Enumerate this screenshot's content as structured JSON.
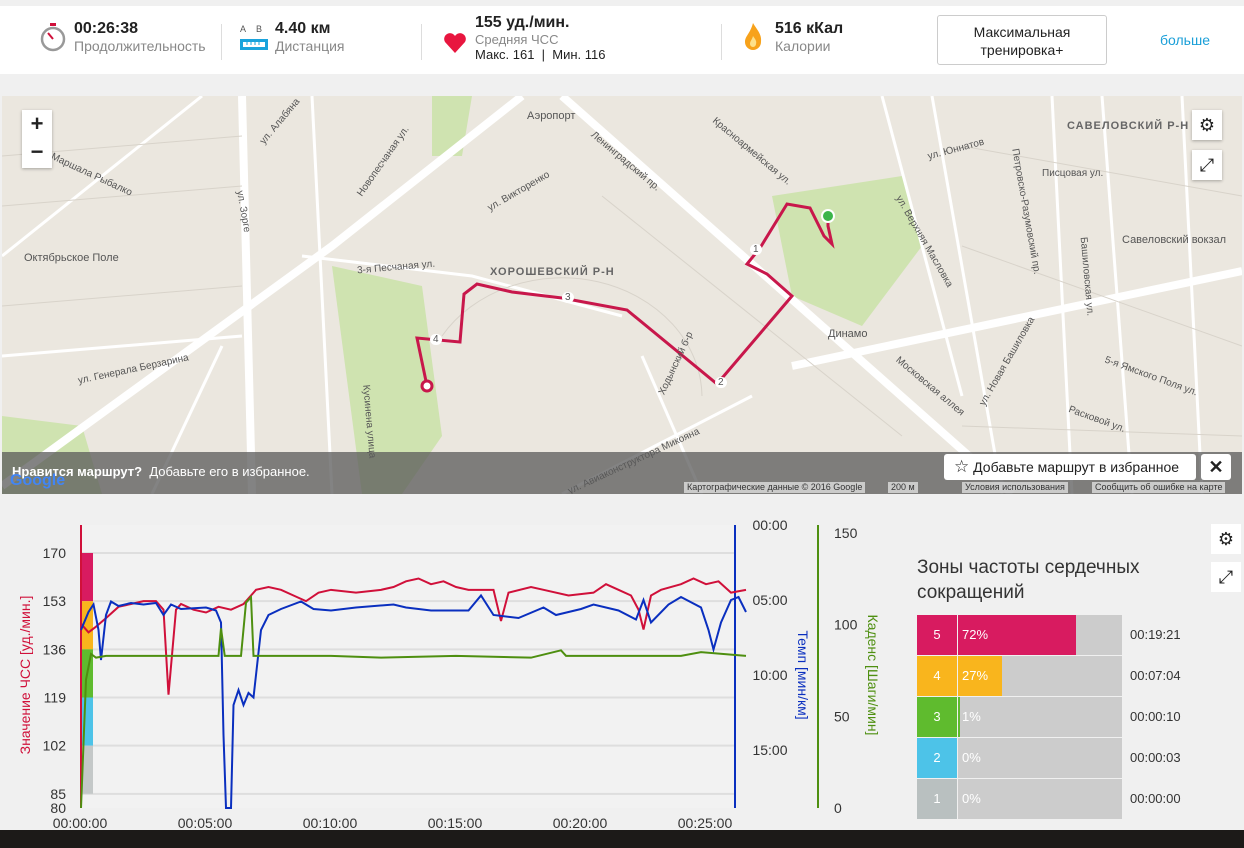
{
  "summary": {
    "duration": {
      "value": "00:26:38",
      "label": "Продолжительность",
      "icon": "stopwatch-icon"
    },
    "distance": {
      "value": "4.40 км",
      "label": "Дистанция",
      "a": "A",
      "b": "B",
      "icon": "ruler-icon"
    },
    "heart_rate": {
      "value": "155 уд./мин.",
      "label": "Средняя ЧСС",
      "minmax": "Макс. 161  |  Мин. 116",
      "icon": "heart-icon"
    },
    "calories": {
      "value": "516 кКал",
      "label": "Калории",
      "icon": "flame-icon"
    },
    "workout_button": "Максимальная тренировка+",
    "more_link": "больше"
  },
  "map": {
    "labels": [
      "Аэропорт",
      "Октябрьское Поле",
      "Динамо",
      "Савеловский вокзал",
      "ул. Зорге",
      "Ленинградский пр.",
      "3-я Песчаная ул.",
      "ул. Генерала Берзарина",
      "Московская аллея",
      "ул. Новая Башиловка",
      "ул. Авиаконструктора Микояна",
      "Ходынский б-р",
      "Кусинена улица",
      "Петровско-Разумовский пр.",
      "Башиловская ул.",
      "Писцовая ул.",
      "ул. Юннатов",
      "Красноармейская ул.",
      "ул. Викторенко",
      "ул. Маршала Рыбалко",
      "ул. Алабяна",
      "Новопесчаная ул.",
      "ул. Верхняя Масловка",
      "Расковой ул.",
      "5-я Ямского Поля ул."
    ],
    "districts": [
      "ХОРОШЕВСКИЙ Р-Н",
      "САВЕЛОВСКИЙ Р-Н"
    ],
    "km_markers": [
      "1",
      "2",
      "3",
      "4"
    ],
    "prompt_bold": "Нравится маршрут?",
    "prompt": "Добавьте его в избранное.",
    "fav_button": "Добавьте маршрут в избранное",
    "close": "✕",
    "zoom_in": "+",
    "zoom_out": "−",
    "footer": {
      "data": "Картографические данные © 2016 Google",
      "scale": "200 м",
      "terms": "Условия использования",
      "report": "Сообщить об ошибке на карте"
    },
    "logo": "Google",
    "route_color": "#c8174b"
  },
  "chart_data": {
    "type": "line",
    "x_ticks": [
      "00:00:00",
      "00:05:00",
      "00:10:00",
      "00:15:00",
      "00:20:00",
      "00:25:00"
    ],
    "x_unit": "minutes",
    "xlim": [
      0,
      26.63
    ],
    "axes": {
      "hr": {
        "label": "Значение ЧСС [уд./мин.]",
        "ticks": [
          "170",
          "153",
          "136",
          "119",
          "102",
          "85",
          "80"
        ],
        "ylim": [
          80,
          170
        ],
        "color": "#d0103a"
      },
      "pace": {
        "label": "Темп [мин/км]",
        "ticks": [
          "00:00",
          "05:00",
          "10:00",
          "15:00"
        ],
        "ylim": [
          0,
          18.9
        ],
        "color": "#0a2fbf"
      },
      "cadence": {
        "label": "Каденс [Шаги/мин]",
        "ticks": [
          "150",
          "100",
          "50",
          "0"
        ],
        "ylim": [
          0,
          150
        ],
        "color": "#4e8f10"
      }
    },
    "series": [
      {
        "name": "ЧСС",
        "axis": "hr",
        "points": [
          [
            0,
            145
          ],
          [
            0.3,
            142
          ],
          [
            0.6,
            144
          ],
          [
            1,
            147
          ],
          [
            1.5,
            151
          ],
          [
            2,
            152
          ],
          [
            2.5,
            153
          ],
          [
            3,
            153
          ],
          [
            3.3,
            150
          ],
          [
            3.5,
            120
          ],
          [
            3.8,
            150
          ],
          [
            4,
            152
          ],
          [
            4.5,
            150
          ],
          [
            5,
            149
          ],
          [
            5.5,
            151
          ],
          [
            6,
            150
          ],
          [
            6.5,
            152
          ],
          [
            7,
            157
          ],
          [
            7.5,
            158
          ],
          [
            8,
            157
          ],
          [
            8.5,
            155
          ],
          [
            9,
            153
          ],
          [
            9.5,
            156
          ],
          [
            10,
            157
          ],
          [
            11,
            156
          ],
          [
            12,
            157
          ],
          [
            12.5,
            158
          ],
          [
            13,
            160
          ],
          [
            13.5,
            161
          ],
          [
            14,
            159
          ],
          [
            14.5,
            160
          ],
          [
            15,
            158
          ],
          [
            15.5,
            157
          ],
          [
            16.5,
            157
          ],
          [
            16.8,
            146
          ],
          [
            17.1,
            156
          ],
          [
            18,
            158
          ],
          [
            18.5,
            157
          ],
          [
            19.5,
            155
          ],
          [
            20.5,
            156
          ],
          [
            21,
            159
          ],
          [
            21.5,
            157
          ],
          [
            22,
            155
          ],
          [
            22.3,
            150
          ],
          [
            22.5,
            143
          ],
          [
            22.8,
            155
          ],
          [
            23.2,
            157
          ],
          [
            24,
            159
          ],
          [
            24.5,
            161
          ],
          [
            25,
            159
          ],
          [
            25.5,
            160
          ],
          [
            26,
            156
          ],
          [
            26.6,
            157
          ]
        ]
      },
      {
        "name": "Темп",
        "axis": "pace",
        "points": [
          [
            0,
            7.0
          ],
          [
            0.3,
            5.8
          ],
          [
            0.5,
            5.3
          ],
          [
            0.7,
            7.0
          ],
          [
            0.8,
            9.0
          ],
          [
            1.0,
            6.0
          ],
          [
            1.2,
            5.1
          ],
          [
            1.5,
            5.4
          ],
          [
            2,
            5.2
          ],
          [
            2.5,
            5.3
          ],
          [
            3,
            5.2
          ],
          [
            3.3,
            6.0
          ],
          [
            3.6,
            5.3
          ],
          [
            4,
            5.6
          ],
          [
            5,
            5.5
          ],
          [
            5.4,
            5.7
          ],
          [
            5.6,
            6.5
          ],
          [
            5.7,
            14.0
          ],
          [
            5.8,
            18.9
          ],
          [
            6.0,
            18.9
          ],
          [
            6.1,
            12.0
          ],
          [
            6.3,
            11.0
          ],
          [
            6.5,
            12.0
          ],
          [
            6.7,
            11.2
          ],
          [
            6.9,
            11.5
          ],
          [
            7.2,
            7.0
          ],
          [
            7.5,
            6.0
          ],
          [
            8,
            5.6
          ],
          [
            8.8,
            5.1
          ],
          [
            9.3,
            5.6
          ],
          [
            10,
            5.7
          ],
          [
            11,
            5.5
          ],
          [
            12.5,
            5.3
          ],
          [
            13,
            5.5
          ],
          [
            14,
            5.7
          ],
          [
            15.5,
            5.7
          ],
          [
            16,
            4.7
          ],
          [
            16.5,
            6.0
          ],
          [
            17.5,
            6.2
          ],
          [
            18.5,
            5.5
          ],
          [
            19,
            6.0
          ],
          [
            20,
            5.6
          ],
          [
            20.5,
            5.3
          ],
          [
            21.5,
            5.7
          ],
          [
            22.2,
            6.3
          ],
          [
            22.5,
            5.0
          ],
          [
            22.8,
            6.5
          ],
          [
            23.5,
            5.3
          ],
          [
            24,
            4.8
          ],
          [
            24.8,
            5.5
          ],
          [
            25.1,
            7.0
          ],
          [
            25.3,
            8.3
          ],
          [
            25.6,
            6.5
          ],
          [
            26,
            5.0
          ],
          [
            26.3,
            4.8
          ],
          [
            26.6,
            5.8
          ]
        ]
      },
      {
        "name": "Каденс",
        "axis": "cadence",
        "points": [
          [
            0,
            0
          ],
          [
            0.2,
            70
          ],
          [
            0.4,
            84
          ],
          [
            0.6,
            82
          ],
          [
            1,
            83
          ],
          [
            5.5,
            83
          ],
          [
            5.6,
            98
          ],
          [
            5.75,
            83
          ],
          [
            6.4,
            83
          ],
          [
            6.6,
            112
          ],
          [
            6.8,
            115
          ],
          [
            6.9,
            83
          ],
          [
            10,
            83
          ],
          [
            12,
            82
          ],
          [
            15,
            83
          ],
          [
            18,
            82
          ],
          [
            19.2,
            86
          ],
          [
            19.4,
            83
          ],
          [
            21,
            83
          ],
          [
            24,
            83
          ],
          [
            24.8,
            85
          ],
          [
            26.6,
            83
          ]
        ]
      }
    ],
    "zone_band_colors": [
      "#d81b60",
      "#f9b51d",
      "#5fbb2e",
      "#4dc3e8",
      "#c4c8c8"
    ]
  },
  "zones": {
    "title": "Зоны частоты сердечных сокращений",
    "rows": [
      {
        "zone": "5",
        "percent": "72%",
        "fraction": 0.72,
        "time": "00:19:21",
        "color": "#d81b60"
      },
      {
        "zone": "4",
        "percent": "27%",
        "fraction": 0.27,
        "time": "00:07:04",
        "color": "#f9b51d"
      },
      {
        "zone": "3",
        "percent": "1%",
        "fraction": 0.01,
        "time": "00:00:10",
        "color": "#5fbb2e"
      },
      {
        "zone": "2",
        "percent": "0%",
        "fraction": 0.0,
        "time": "00:00:03",
        "color": "#4dc3e8"
      },
      {
        "zone": "1",
        "percent": "0%",
        "fraction": 0.0,
        "time": "00:00:00",
        "color": "#b9c0c0"
      }
    ]
  }
}
